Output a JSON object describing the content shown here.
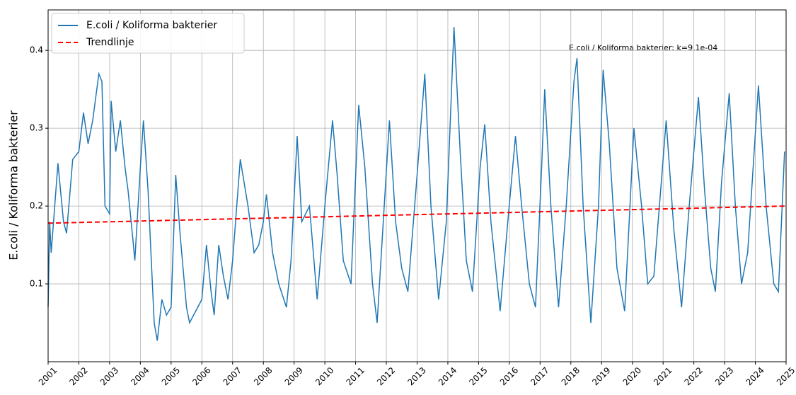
{
  "chart_data": {
    "type": "line",
    "y_label": "E.coli / Koliforma bakterier",
    "annotation": "E.coli / Koliforma bakterier: k=9.1e-04",
    "xlim": [
      2001,
      2025
    ],
    "xticks": [
      2001,
      2002,
      2003,
      2004,
      2005,
      2006,
      2007,
      2008,
      2009,
      2010,
      2011,
      2012,
      2013,
      2014,
      2015,
      2016,
      2017,
      2018,
      2019,
      2020,
      2021,
      2022,
      2023,
      2024,
      2025
    ],
    "ylim": [
      0,
      0.452
    ],
    "yticks": [
      0.1,
      0.2,
      0.3,
      0.4
    ],
    "grid": true,
    "legend": "upper left",
    "series": [
      {
        "name": "E.coli / Koliforma bakterier",
        "color": "#1f77b4",
        "linestyle": "solid",
        "x": [
          2001.0,
          2001.05,
          2001.1,
          2001.32,
          2001.5,
          2001.6,
          2001.8,
          2002.0,
          2002.15,
          2002.3,
          2002.45,
          2002.65,
          2002.75,
          2002.85,
          2003.0,
          2003.05,
          2003.2,
          2003.35,
          2003.5,
          2003.6,
          2003.75,
          2003.82,
          2004.0,
          2004.1,
          2004.25,
          2004.45,
          2004.55,
          2004.7,
          2004.85,
          2005.0,
          2005.15,
          2005.3,
          2005.5,
          2005.6,
          2005.8,
          2006.0,
          2006.15,
          2006.3,
          2006.4,
          2006.55,
          2006.7,
          2006.85,
          2007.0,
          2007.25,
          2007.5,
          2007.7,
          2007.85,
          2008.0,
          2008.1,
          2008.3,
          2008.5,
          2008.75,
          2008.9,
          2009.1,
          2009.25,
          2009.5,
          2009.75,
          2010.0,
          2010.25,
          2010.4,
          2010.6,
          2010.85,
          2011.1,
          2011.3,
          2011.55,
          2011.7,
          2011.9,
          2012.1,
          2012.3,
          2012.5,
          2012.7,
          2013.0,
          2013.25,
          2013.45,
          2013.7,
          2013.95,
          2014.2,
          2014.4,
          2014.6,
          2014.8,
          2015.05,
          2015.2,
          2015.4,
          2015.7,
          2015.95,
          2016.2,
          2016.4,
          2016.65,
          2016.85,
          2017.05,
          2017.15,
          2017.35,
          2017.6,
          2017.85,
          2018.1,
          2018.2,
          2018.4,
          2018.65,
          2018.9,
          2019.05,
          2019.25,
          2019.5,
          2019.75,
          2020.05,
          2020.3,
          2020.5,
          2020.7,
          2021.0,
          2021.1,
          2021.35,
          2021.6,
          2021.85,
          2022.15,
          2022.35,
          2022.55,
          2022.7,
          2022.9,
          2023.15,
          2023.35,
          2023.55,
          2023.75,
          2024.1,
          2024.35,
          2024.6,
          2024.75,
          2024.95
        ],
        "values": [
          0.07,
          0.18,
          0.14,
          0.255,
          0.18,
          0.165,
          0.26,
          0.27,
          0.32,
          0.28,
          0.31,
          0.37,
          0.36,
          0.2,
          0.19,
          0.335,
          0.27,
          0.31,
          0.25,
          0.22,
          0.16,
          0.13,
          0.25,
          0.31,
          0.22,
          0.05,
          0.027,
          0.08,
          0.06,
          0.07,
          0.24,
          0.16,
          0.07,
          0.05,
          0.065,
          0.08,
          0.15,
          0.09,
          0.06,
          0.15,
          0.11,
          0.08,
          0.13,
          0.26,
          0.2,
          0.14,
          0.15,
          0.18,
          0.215,
          0.14,
          0.1,
          0.07,
          0.13,
          0.29,
          0.18,
          0.2,
          0.08,
          0.2,
          0.31,
          0.24,
          0.13,
          0.1,
          0.33,
          0.25,
          0.1,
          0.05,
          0.18,
          0.31,
          0.18,
          0.12,
          0.09,
          0.24,
          0.37,
          0.2,
          0.08,
          0.18,
          0.43,
          0.27,
          0.13,
          0.09,
          0.25,
          0.305,
          0.18,
          0.065,
          0.18,
          0.29,
          0.2,
          0.1,
          0.07,
          0.25,
          0.35,
          0.2,
          0.07,
          0.2,
          0.36,
          0.39,
          0.2,
          0.05,
          0.2,
          0.375,
          0.28,
          0.12,
          0.065,
          0.3,
          0.2,
          0.1,
          0.11,
          0.26,
          0.31,
          0.17,
          0.07,
          0.2,
          0.34,
          0.22,
          0.12,
          0.09,
          0.23,
          0.345,
          0.2,
          0.1,
          0.14,
          0.355,
          0.2,
          0.1,
          0.09,
          0.27
        ]
      },
      {
        "name": "Trendlinje",
        "color": "#ff0000",
        "linestyle": "dashed",
        "x": [
          2001,
          2025
        ],
        "values": [
          0.178,
          0.2
        ]
      }
    ]
  }
}
